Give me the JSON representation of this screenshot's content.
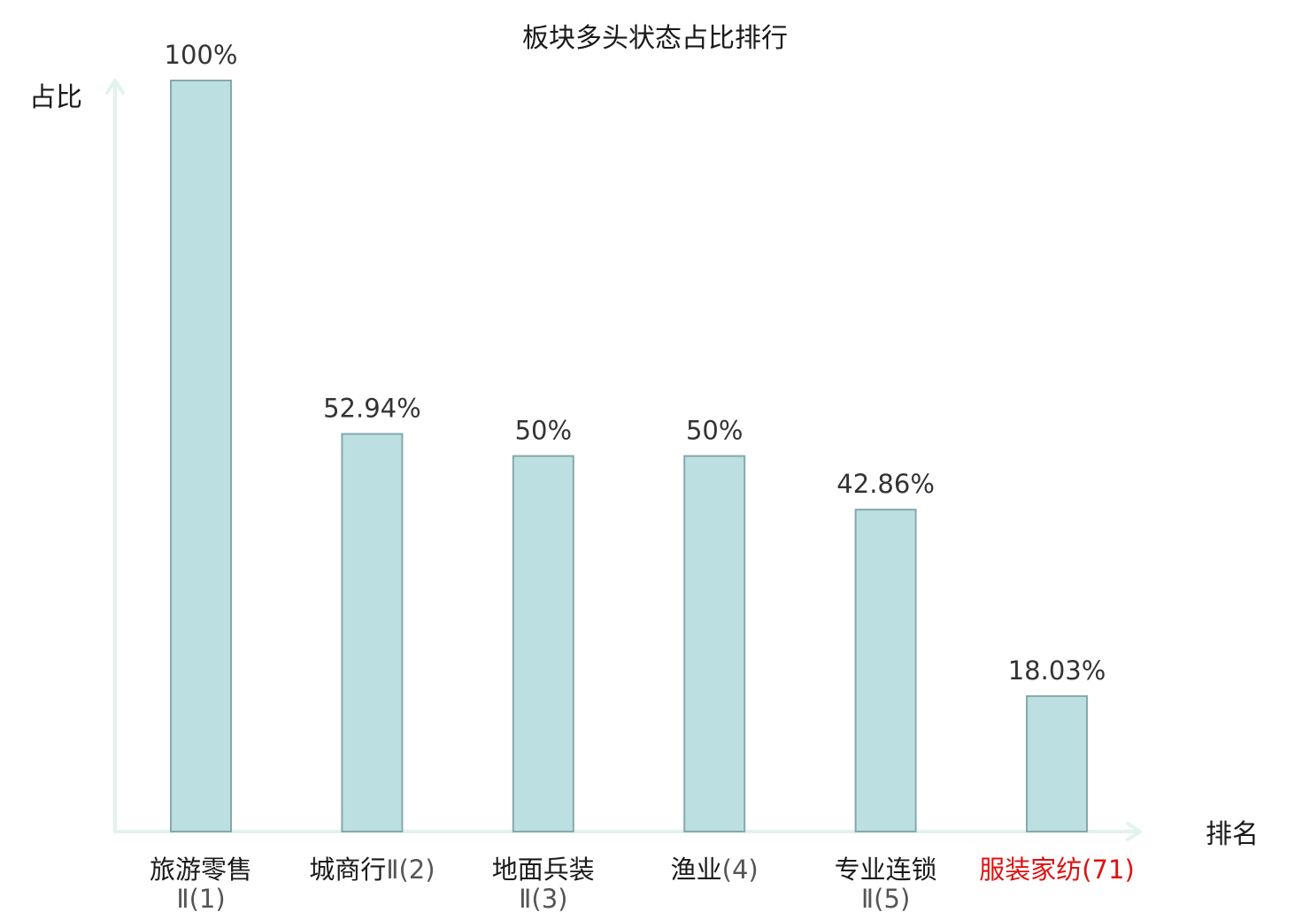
{
  "chart_data": {
    "type": "bar",
    "title": "板块多头状态占比排行",
    "ylabel": "占比",
    "xlabel": "排名",
    "ylim": [
      0,
      100
    ],
    "categories": [
      {
        "name_lines": [
          "旅游零售",
          "Ⅱ(1)"
        ]
      },
      {
        "name_lines": [
          "城商行Ⅱ(2)"
        ]
      },
      {
        "name_lines": [
          "地面兵装",
          "Ⅱ(3)"
        ]
      },
      {
        "name_lines": [
          "渔业(4)"
        ]
      },
      {
        "name_lines": [
          "专业连锁",
          "Ⅱ(5)"
        ]
      },
      {
        "name_lines": [
          "服装家纺(71)"
        ],
        "highlight": true
      }
    ],
    "values": [
      100,
      52.94,
      50,
      50,
      42.86,
      18.03
    ],
    "value_labels": [
      "100%",
      "52.94%",
      "50%",
      "50%",
      "42.86%",
      "18.03%"
    ],
    "colors": {
      "bar_fill": "#bce0e2",
      "bar_stroke": "#86a8ab",
      "axis": "#e2f2ef",
      "highlight_text": "#e01010"
    }
  }
}
